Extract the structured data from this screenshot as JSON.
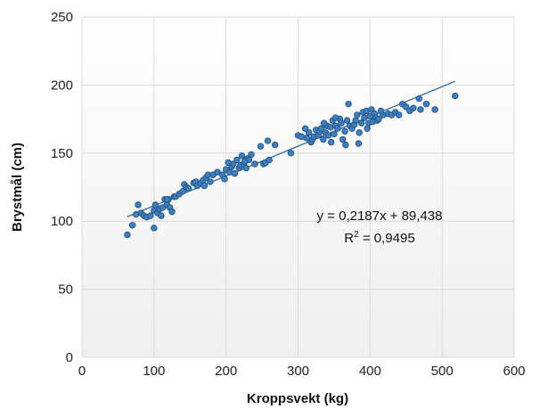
{
  "chart_data": {
    "type": "scatter",
    "title": "",
    "xlabel": "Kroppsvekt (kg)",
    "ylabel": "Brystmål (cm)",
    "xlim": [
      0,
      600
    ],
    "ylim": [
      0,
      250
    ],
    "x_ticks": [
      "0",
      "100",
      "200",
      "300",
      "400",
      "500",
      "600"
    ],
    "y_ticks": [
      "0",
      "50",
      "100",
      "150",
      "200",
      "250"
    ],
    "grid": true,
    "legend": "none",
    "colors": {
      "point_fill": "#3d7fc1",
      "point_stroke": "#1f4e79",
      "trendline": "#2e6da4",
      "gridline": "#d9d9d9",
      "plot_top": "#ffffff",
      "plot_bottom": "#f0f0f0"
    },
    "trendline": {
      "type": "linear",
      "slope": 0.2187,
      "intercept": 89.438,
      "x_range": [
        63,
        518
      ],
      "equation_label": "y = 0,2187x + 89,438",
      "r2_prefix": "R",
      "r2_sup": "2",
      "r2_suffix": " = 0,9495"
    },
    "points": [
      [
        63,
        90
      ],
      [
        70,
        97
      ],
      [
        75,
        105
      ],
      [
        78,
        112
      ],
      [
        82,
        106
      ],
      [
        86,
        104
      ],
      [
        90,
        103
      ],
      [
        95,
        104
      ],
      [
        100,
        108
      ],
      [
        100,
        95
      ],
      [
        102,
        112
      ],
      [
        105,
        106
      ],
      [
        108,
        109
      ],
      [
        110,
        104
      ],
      [
        112,
        110
      ],
      [
        115,
        116
      ],
      [
        118,
        112
      ],
      [
        120,
        116
      ],
      [
        122,
        110
      ],
      [
        125,
        107
      ],
      [
        128,
        118
      ],
      [
        130,
        118
      ],
      [
        135,
        120
      ],
      [
        140,
        122
      ],
      [
        142,
        127
      ],
      [
        145,
        125
      ],
      [
        155,
        128
      ],
      [
        158,
        129
      ],
      [
        160,
        126
      ],
      [
        165,
        128
      ],
      [
        168,
        130
      ],
      [
        170,
        126
      ],
      [
        172,
        132
      ],
      [
        175,
        134
      ],
      [
        178,
        129
      ],
      [
        182,
        134
      ],
      [
        188,
        136
      ],
      [
        195,
        134
      ],
      [
        200,
        138
      ],
      [
        205,
        136
      ],
      [
        208,
        140
      ],
      [
        210,
        142
      ],
      [
        212,
        135
      ],
      [
        215,
        145
      ],
      [
        218,
        139
      ],
      [
        220,
        141
      ],
      [
        222,
        148
      ],
      [
        225,
        142
      ],
      [
        228,
        139
      ],
      [
        230,
        146
      ],
      [
        232,
        145
      ],
      [
        235,
        149
      ],
      [
        240,
        142
      ],
      [
        248,
        155
      ],
      [
        252,
        142
      ],
      [
        255,
        143
      ],
      [
        258,
        159
      ],
      [
        260,
        145
      ],
      [
        268,
        156
      ],
      [
        290,
        150
      ],
      [
        300,
        163
      ],
      [
        305,
        162
      ],
      [
        310,
        168
      ],
      [
        312,
        161
      ],
      [
        315,
        165
      ],
      [
        318,
        158
      ],
      [
        320,
        160
      ],
      [
        322,
        162
      ],
      [
        325,
        167
      ],
      [
        328,
        163
      ],
      [
        330,
        166
      ],
      [
        332,
        168
      ],
      [
        335,
        160
      ],
      [
        338,
        165
      ],
      [
        340,
        170
      ],
      [
        342,
        163
      ],
      [
        345,
        169
      ],
      [
        348,
        174
      ],
      [
        350,
        164
      ],
      [
        352,
        170
      ],
      [
        355,
        168
      ],
      [
        358,
        175
      ],
      [
        360,
        172
      ],
      [
        362,
        160
      ],
      [
        365,
        166
      ],
      [
        368,
        174
      ],
      [
        370,
        186
      ],
      [
        372,
        170
      ],
      [
        375,
        168
      ],
      [
        378,
        171
      ],
      [
        380,
        174
      ],
      [
        382,
        178
      ],
      [
        385,
        165
      ],
      [
        388,
        172
      ],
      [
        390,
        180
      ],
      [
        392,
        176
      ],
      [
        395,
        181
      ],
      [
        398,
        172
      ],
      [
        400,
        177
      ],
      [
        402,
        182
      ],
      [
        404,
        173
      ],
      [
        406,
        179
      ],
      [
        408,
        176
      ],
      [
        410,
        174
      ],
      [
        412,
        175
      ],
      [
        418,
        178
      ],
      [
        425,
        179
      ],
      [
        430,
        178
      ],
      [
        435,
        180
      ],
      [
        440,
        178
      ],
      [
        445,
        186
      ],
      [
        450,
        184
      ],
      [
        455,
        181
      ],
      [
        460,
        183
      ],
      [
        468,
        190
      ],
      [
        470,
        182
      ],
      [
        478,
        186
      ],
      [
        490,
        182
      ],
      [
        518,
        192
      ],
      [
        118,
        116
      ],
      [
        148,
        124
      ],
      [
        198,
        131
      ],
      [
        203,
        143
      ],
      [
        226,
        144
      ],
      [
        336,
        172
      ],
      [
        346,
        158
      ],
      [
        352,
        176
      ],
      [
        366,
        156
      ],
      [
        384,
        157
      ],
      [
        396,
        168
      ],
      [
        415,
        181
      ]
    ]
  }
}
